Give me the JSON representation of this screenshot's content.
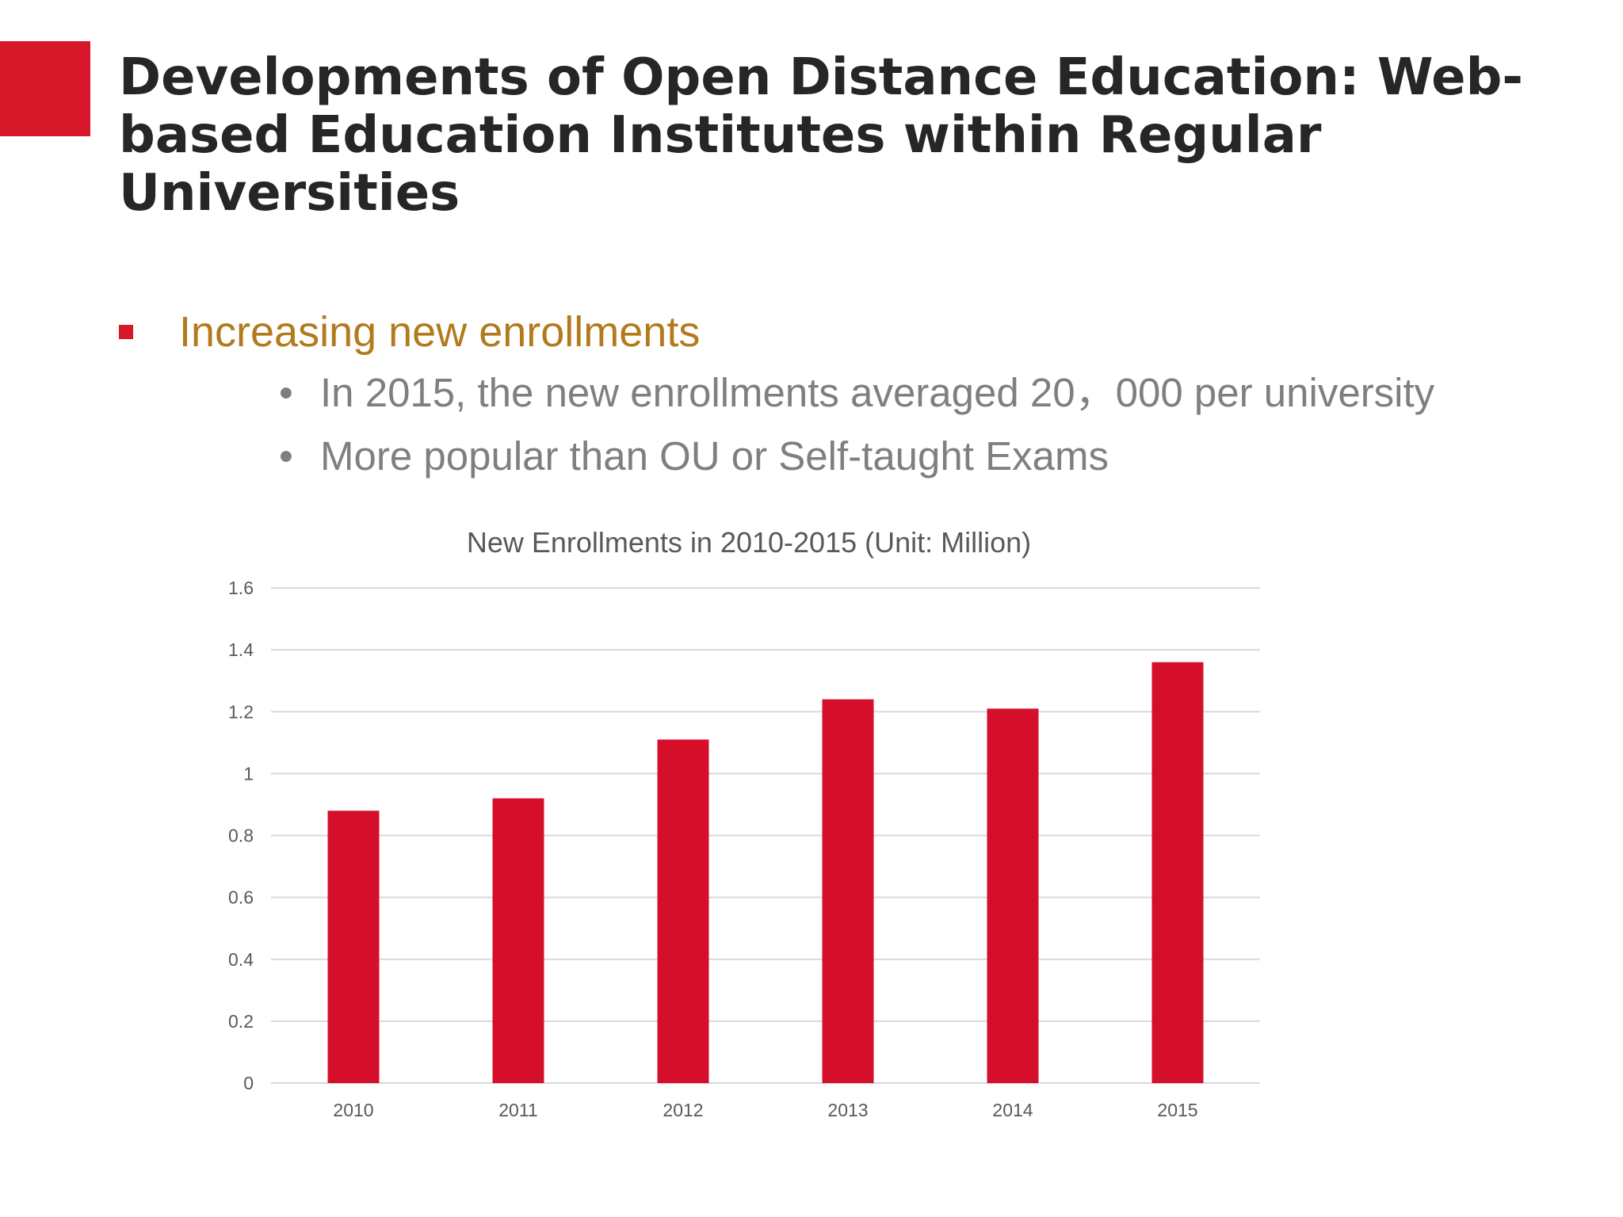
{
  "slide": {
    "title": "Developments of Open Distance Education: Web-based Education Institutes within Regular Universities",
    "bullet": "Increasing new enrollments",
    "sub_bullets": [
      "In 2015, the new enrollments averaged  20，000 per university",
      "More popular than OU or Self-taught Exams"
    ],
    "sub_bullet_marker": "•"
  },
  "colors": {
    "accent": "#d7182a",
    "bar": "#d50f2a",
    "title": "#262626",
    "bullet_text": "#b27a1c",
    "sub_text": "#7f7f7f",
    "grid": "#d9d9d9",
    "axis_text": "#595959"
  },
  "chart_data": {
    "type": "bar",
    "title": "New Enrollments in 2010-2015 (Unit: Million)",
    "categories": [
      "2010",
      "2011",
      "2012",
      "2013",
      "2014",
      "2015"
    ],
    "values": [
      0.88,
      0.92,
      1.11,
      1.24,
      1.21,
      1.36
    ],
    "ylim": [
      0,
      1.6
    ],
    "yticks": [
      "0",
      "0.2",
      "0.4",
      "0.6",
      "0.8",
      "1",
      "1.2",
      "1.4",
      "1.6"
    ],
    "xlabel": "",
    "ylabel": "",
    "grid": true,
    "legend": "none"
  }
}
